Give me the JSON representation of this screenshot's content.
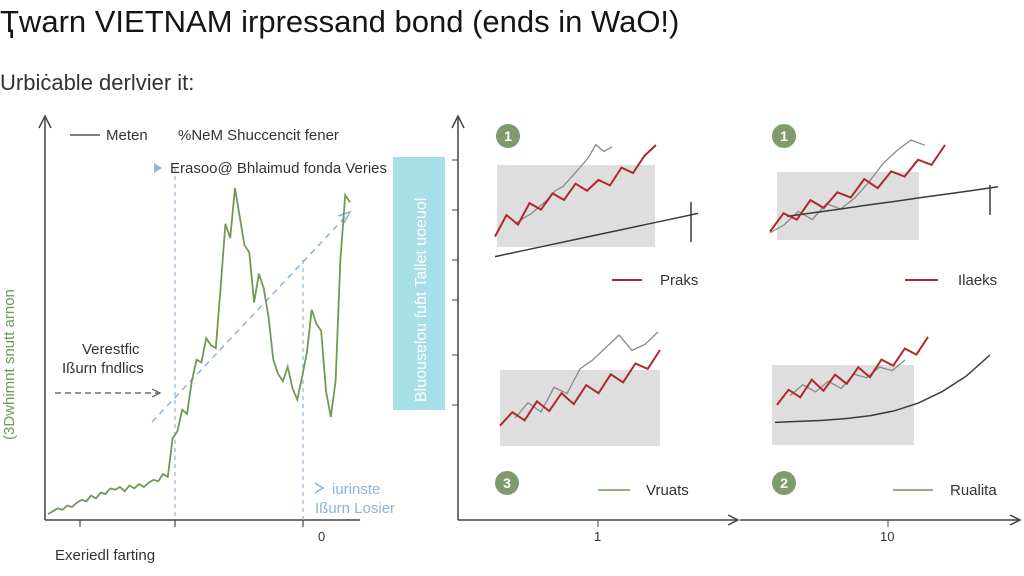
{
  "header": {
    "title": "Ҭwarn VIETNAM irpressand bond (ends in WaO!)",
    "subtitle": "Urbiċable derlvier it:"
  },
  "colors": {
    "green": "#6e9a55",
    "blue_dash": "#8ab4d8",
    "red": "#b0282c",
    "gray": "#8a8a8a",
    "dark_line": "#3a3a3a",
    "shade": "#dedede",
    "cyan_band": "#a6dfe8",
    "badge": "#7f9b6b"
  },
  "chart_data": [
    {
      "type": "line",
      "legend": {
        "label": "Meten",
        "note": "%NeM Shuccencit fener"
      },
      "ylabel": "(3Dwhimnt snutt arnon",
      "xlabel": "Exeriedl farting",
      "annotations": {
        "top": "Erasoo@ Bhlaimud fonda Veries",
        "left_1": "Verestfic",
        "left_2": "Ißurn fndlics",
        "bottom_1": "iurinste",
        "bottom_2": "Ißurn Losier"
      },
      "x_tick_labels": [
        "",
        "",
        "0"
      ],
      "series": [
        {
          "values": [
            2,
            4,
            6,
            5,
            8,
            7,
            10,
            12,
            11,
            15,
            13,
            17,
            16,
            20,
            19,
            21,
            18,
            22,
            20,
            23,
            21,
            24,
            26,
            25,
            30,
            28,
            55,
            60,
            75,
            72,
            95,
            110,
            108,
            125,
            120,
            118,
            160,
            205,
            195,
            230,
            210,
            190,
            185,
            150,
            170,
            160,
            140,
            110,
            100,
            95,
            105,
            90,
            82,
            98,
            115,
            145,
            135,
            130,
            88,
            70,
            95,
            180,
            225,
            220
          ]
        }
      ]
    },
    {
      "type": "text",
      "band_label": "Bluousɐlou fuɓt Tallet uoeuol"
    },
    {
      "type": "line",
      "badge": "1",
      "legend": "Praks",
      "series": [
        {
          "name": "Praks",
          "values": [
            40,
            80,
            62,
            102,
            90,
            120,
            108,
            138,
            125,
            145,
            135,
            168,
            158,
            190,
            210
          ]
        },
        {
          "values": [
            48,
            60,
            70,
            85,
            100,
            120,
            130,
            150,
            170,
            190,
            220,
            205,
            215
          ]
        },
        {
          "values": [
            10,
            20,
            30,
            40,
            50,
            60,
            70,
            80,
            90
          ]
        }
      ]
    },
    {
      "type": "line",
      "badge": "1",
      "legend": "Ilaeks",
      "series": [
        {
          "name": "Ilaeks",
          "values": [
            35,
            70,
            58,
            95,
            80,
            110,
            100,
            135,
            118,
            150,
            140,
            172,
            162,
            200
          ]
        },
        {
          "values": [
            55,
            70,
            95,
            80,
            110,
            100,
            120,
            150,
            185,
            210,
            230,
            220
          ]
        },
        {
          "values": [
            15,
            25,
            35,
            45,
            55,
            65,
            75,
            85,
            95
          ]
        }
      ]
    },
    {
      "type": "line",
      "badge": "3",
      "legend": "Vruats",
      "x_tick_labels": [
        "1"
      ],
      "series": [
        {
          "values": [
            45,
            70,
            55,
            90,
            72,
            105,
            85,
            120,
            105,
            140,
            125,
            160,
            150,
            185
          ]
        },
        {
          "values": [
            60,
            85,
            70,
            110,
            100,
            140,
            155,
            175,
            195,
            170,
            180,
            200
          ]
        }
      ]
    },
    {
      "type": "line",
      "badge": "2",
      "legend": "Rualita",
      "x_tick_labels": [
        "10"
      ],
      "series": [
        {
          "values": [
            50,
            80,
            65,
            100,
            78,
            110,
            92,
            125,
            105,
            140,
            128,
            162,
            150,
            185
          ]
        },
        {
          "values": [
            60,
            75,
            65,
            80,
            70,
            90,
            85,
            100,
            95,
            110
          ]
        },
        {
          "values": [
            10,
            11,
            12,
            14,
            17,
            22,
            30,
            42,
            58,
            80
          ]
        }
      ]
    }
  ]
}
